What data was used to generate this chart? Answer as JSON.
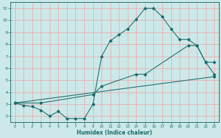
{
  "xlabel": "Humidex (Indice chaleur)",
  "background_color": "#cce8e8",
  "grid_color": "#f0a0a0",
  "line_color": "#1a6b6b",
  "xlim": [
    -0.5,
    23.5
  ],
  "ylim": [
    1.5,
    11.5
  ],
  "yticks": [
    2,
    3,
    4,
    5,
    6,
    7,
    8,
    9,
    10,
    11
  ],
  "xticks": [
    0,
    1,
    2,
    3,
    4,
    5,
    6,
    7,
    8,
    9,
    10,
    11,
    12,
    13,
    14,
    15,
    16,
    17,
    18,
    19,
    20,
    21,
    22,
    23
  ],
  "line1_x": [
    0,
    1,
    2,
    3,
    4,
    5,
    6,
    7,
    8,
    9,
    10,
    11,
    12,
    13,
    14,
    15,
    16,
    17,
    18,
    19,
    20,
    21,
    22,
    23
  ],
  "line1_y": [
    3.1,
    2.9,
    2.8,
    2.5,
    2.0,
    2.4,
    1.8,
    1.8,
    1.8,
    3.0,
    7.0,
    8.3,
    8.8,
    9.3,
    10.1,
    11.0,
    11.0,
    10.3,
    9.3,
    8.4,
    8.4,
    7.9,
    6.5,
    6.5
  ],
  "line2_x": [
    0,
    3,
    9,
    10,
    14,
    15,
    20,
    21,
    22,
    23
  ],
  "line2_y": [
    3.1,
    3.1,
    3.8,
    4.5,
    5.5,
    5.5,
    7.9,
    7.9,
    6.5,
    5.5
  ],
  "line3_x": [
    0,
    23
  ],
  "line3_y": [
    3.1,
    5.3
  ]
}
